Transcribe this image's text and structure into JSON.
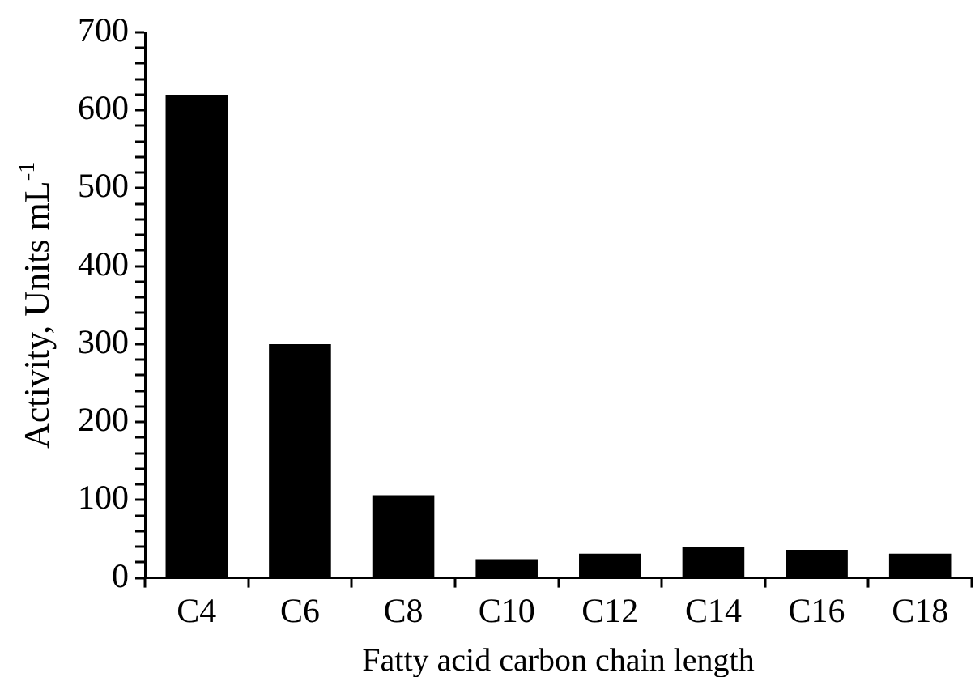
{
  "chart_data": {
    "type": "bar",
    "xlabel": "Fatty acid carbon chain length",
    "ylabel": "Activity, Units mL$^{-1}$",
    "categories": [
      "C4",
      "C6",
      "C8",
      "C10",
      "C12",
      "C14",
      "C16",
      "C18"
    ],
    "values": [
      620,
      300,
      106,
      24,
      31,
      39,
      36,
      31
    ],
    "color": "#000000",
    "ylim": [
      0,
      700
    ],
    "yticks": [
      0,
      {
        "value": 20,
        "label": null
      },
      {
        "value": 40,
        "label": null
      },
      {
        "value": 60,
        "label": null
      },
      {
        "value": 80,
        "label": null
      },
      100,
      {
        "value": 120,
        "label": null
      },
      {
        "value": 140,
        "label": null
      },
      {
        "value": 160,
        "label": null
      },
      {
        "value": 180,
        "label": null
      },
      200,
      {
        "value": 220,
        "label": null
      },
      {
        "value": 240,
        "label": null
      },
      {
        "value": 260,
        "label": null
      },
      {
        "value": 280,
        "label": null
      },
      300,
      {
        "value": 320,
        "label": null
      },
      {
        "value": 340,
        "label": null
      },
      {
        "value": 360,
        "label": null
      },
      {
        "value": 380,
        "label": null
      },
      400,
      {
        "value": 420,
        "label": null
      },
      {
        "value": 440,
        "label": null
      },
      {
        "value": 460,
        "label": null
      },
      {
        "value": 480,
        "label": null
      },
      500,
      {
        "value": 520,
        "label": null
      },
      {
        "value": 540,
        "label": null
      },
      {
        "value": 560,
        "label": null
      },
      {
        "value": 580,
        "label": null
      },
      600,
      {
        "value": 620,
        "label": null
      },
      {
        "value": 640,
        "label": null
      },
      {
        "value": 660,
        "label": null
      },
      {
        "value": 680,
        "label": null
      },
      700
    ],
    "grid": false
  }
}
